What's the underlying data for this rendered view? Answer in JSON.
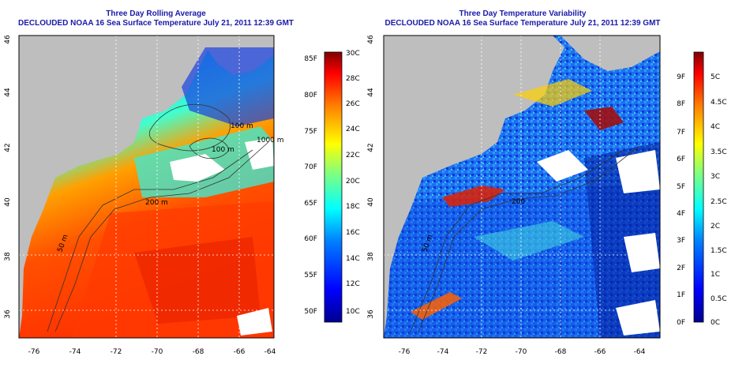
{
  "left_map": {
    "title": "Three Day Rolling Average",
    "subtitle": "DECLOUDED NOAA 16 Sea Surface Temperature July 21, 2011 12:39 GMT",
    "lat_ticks": [
      "36",
      "38",
      "40",
      "42",
      "44",
      "46"
    ],
    "lon_ticks": [
      "-76",
      "-74",
      "-72",
      "-70",
      "-68",
      "-66",
      "-64"
    ],
    "contours": [
      "100 m",
      "100 m",
      "1000 m",
      "200 m",
      "50 m"
    ],
    "colorbar_f": [
      "85F",
      "80F",
      "75F",
      "70F",
      "65F",
      "60F",
      "55F",
      "50F"
    ],
    "colorbar_c": [
      "30C",
      "28C",
      "26C",
      "24C",
      "22C",
      "20C",
      "18C",
      "16C",
      "14C",
      "12C",
      "10C"
    ]
  },
  "right_map": {
    "title": "Three Day Temperature Variability",
    "subtitle": "DECLOUDED NOAA 16 Sea Surface Temperature July 21, 2011 12:39 GMT",
    "lat_ticks": [
      "36",
      "38",
      "40",
      "42",
      "44",
      "46"
    ],
    "lon_ticks": [
      "-76",
      "-74",
      "-72",
      "-70",
      "-68",
      "-66",
      "-64"
    ],
    "contours": [
      "200",
      "50 m"
    ],
    "colorbar_f": [
      "9F",
      "8F",
      "7F",
      "6F",
      "5F",
      "4F",
      "3F",
      "2F",
      "1F",
      "0F"
    ],
    "colorbar_c": [
      "5C",
      "4.5C",
      "4C",
      "3.5C",
      "3C",
      "2.5C",
      "2C",
      "1.5C",
      "1C",
      "0.5C",
      "0C"
    ]
  },
  "colors": {
    "title_blue": "#1a1aa8",
    "land_gray": "#bebebe",
    "sst_scale": [
      "#00008f",
      "#0000ff",
      "#0080ff",
      "#00ffff",
      "#80ff80",
      "#ffff00",
      "#ff8000",
      "#ff0000",
      "#800000"
    ]
  }
}
